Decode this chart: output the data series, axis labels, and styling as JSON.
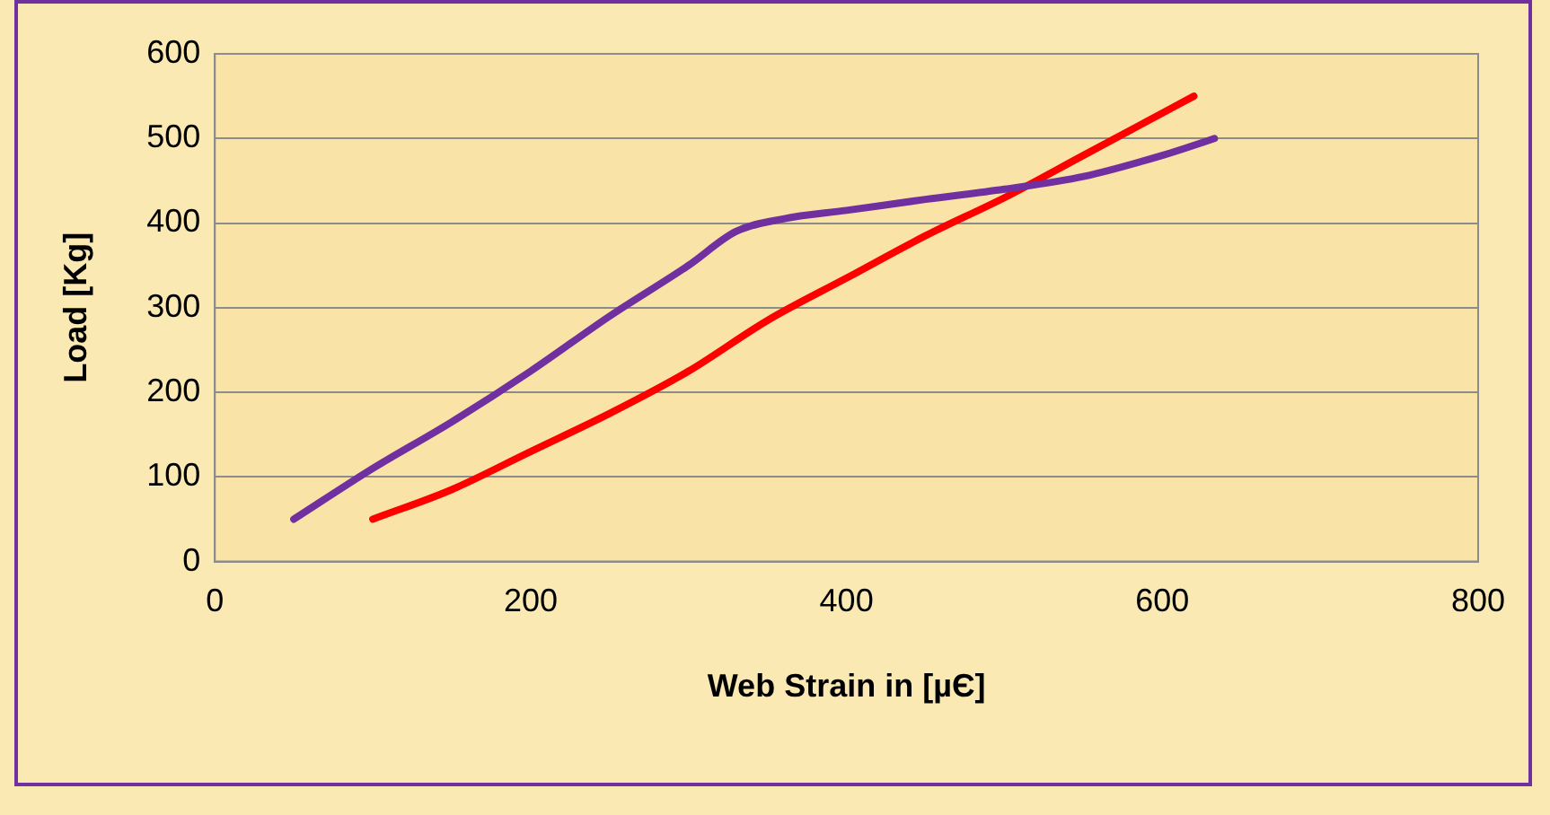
{
  "chart_data": {
    "type": "line",
    "xlabel": "Web Strain in [µЄ]",
    "ylabel": "Load [Kg]",
    "series": [
      {
        "color": "#7030a0",
        "x": [
          50,
          100,
          150,
          200,
          250,
          300,
          330,
          360,
          400,
          450,
          500,
          550,
          600,
          633
        ],
        "values": [
          50,
          110,
          165,
          225,
          290,
          350,
          390,
          405,
          415,
          428,
          440,
          455,
          480,
          500
        ]
      },
      {
        "color": "#ff0000",
        "x": [
          100,
          150,
          200,
          250,
          300,
          350,
          400,
          450,
          500,
          550,
          600,
          620
        ],
        "values": [
          50,
          85,
          130,
          175,
          225,
          285,
          335,
          385,
          430,
          480,
          530,
          550
        ]
      }
    ],
    "xlim": [
      0,
      800
    ],
    "xticks": [
      0,
      200,
      400,
      600,
      800
    ],
    "ylim": [
      0,
      600
    ],
    "yticks": [
      0,
      100,
      200,
      300,
      400,
      500,
      600
    ],
    "grid": "y",
    "legend": false,
    "marker": "none",
    "line_style": "solid"
  }
}
